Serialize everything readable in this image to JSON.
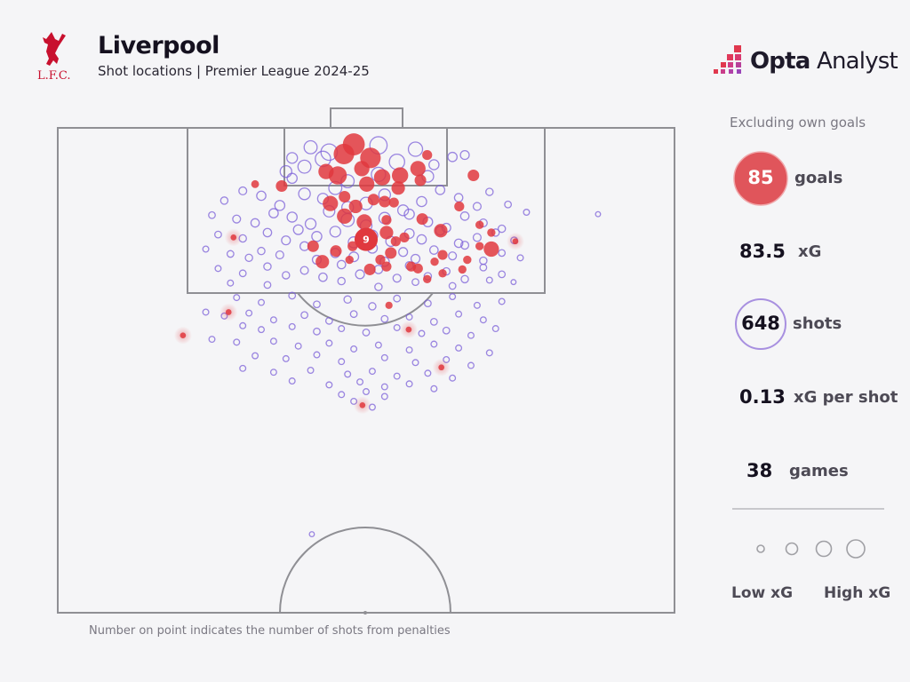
{
  "header": {
    "title": "Liverpool",
    "subtitle": "Shot locations | Premier League 2024-25",
    "club_logo_text": "L.F.C.",
    "brand_bold": "Opta",
    "brand_regular": "Analyst"
  },
  "stats": {
    "note": "Excluding own goals",
    "goals_value": "85",
    "goals_label": "goals",
    "xg_value": "83.5",
    "xg_label": "xG",
    "shots_value": "648",
    "shots_label": "shots",
    "xg_per_shot_value": "0.13",
    "xg_per_shot_label": "xG per shot",
    "games_value": "38",
    "games_label": "games"
  },
  "legend": {
    "low_label": "Low xG",
    "high_label": "High xG"
  },
  "footnote": "Number on point indicates the number of shots from penalties",
  "colors": {
    "goal": "#e0383e",
    "shot": "#7b5fd8",
    "pitch_line": "#8f8f94",
    "background": "#f5f5f7"
  },
  "chart_data": {
    "type": "scatter",
    "coordinate_system": "opta pitch units, x = 0-100 along pitch length (100 = goal line), y = 0-100 across pitch",
    "size_encodes": "xG",
    "penalties": {
      "x": 88.5,
      "y": 50.0,
      "xG": 0.79,
      "label": "9"
    },
    "goals": [
      [
        98.3,
        48.0,
        0.7
      ],
      [
        97.3,
        46.4,
        0.6
      ],
      [
        96.9,
        50.7,
        0.6
      ],
      [
        95.8,
        49.3,
        0.3
      ],
      [
        95.5,
        43.5,
        0.3
      ],
      [
        95.1,
        45.4,
        0.45
      ],
      [
        94.9,
        52.6,
        0.35
      ],
      [
        95.1,
        55.5,
        0.35
      ],
      [
        95.8,
        58.4,
        0.3
      ],
      [
        94.6,
        58.8,
        0.15
      ],
      [
        94.2,
        50.1,
        0.3
      ],
      [
        93.8,
        55.2,
        0.22
      ],
      [
        97.2,
        59.9,
        0.1
      ],
      [
        95.1,
        67.4,
        0.15
      ],
      [
        94.0,
        36.3,
        0.15
      ],
      [
        94.2,
        32.0,
        0.05
      ],
      [
        92.2,
        44.2,
        0.3
      ],
      [
        92.9,
        46.5,
        0.15
      ],
      [
        91.9,
        48.3,
        0.22
      ],
      [
        92.6,
        51.2,
        0.15
      ],
      [
        92.4,
        53.0,
        0.15
      ],
      [
        92.3,
        54.5,
        0.1
      ],
      [
        90.9,
        46.5,
        0.3
      ],
      [
        90.3,
        49.7,
        0.3
      ],
      [
        90.5,
        53.3,
        0.1
      ],
      [
        90.6,
        59.1,
        0.15
      ],
      [
        91.9,
        65.1,
        0.1
      ],
      [
        89.2,
        53.3,
        0.22
      ],
      [
        88.7,
        56.2,
        0.1
      ],
      [
        89.4,
        62.1,
        0.22
      ],
      [
        90.0,
        68.4,
        0.06
      ],
      [
        89.2,
        70.3,
        0.06
      ],
      [
        87.8,
        41.4,
        0.15
      ],
      [
        87.3,
        45.1,
        0.15
      ],
      [
        87.8,
        47.8,
        0.1
      ],
      [
        88.3,
        54.8,
        0.1
      ],
      [
        87.1,
        54.0,
        0.15
      ],
      [
        86.4,
        52.3,
        0.1
      ],
      [
        86.9,
        62.4,
        0.1
      ],
      [
        87.5,
        70.3,
        0.3
      ],
      [
        87.8,
        68.4,
        0.06
      ],
      [
        88.3,
        74.2,
        0.02
      ],
      [
        88.7,
        28.5,
        0.02
      ],
      [
        86.2,
        42.9,
        0.22
      ],
      [
        86.4,
        47.3,
        0.06
      ],
      [
        85.4,
        50.6,
        0.15
      ],
      [
        85.7,
        53.3,
        0.1
      ],
      [
        85.7,
        57.3,
        0.1
      ],
      [
        85.5,
        58.4,
        0.1
      ],
      [
        86.2,
        61.1,
        0.06
      ],
      [
        85.4,
        65.6,
        0.06
      ],
      [
        86.4,
        66.4,
        0.06
      ],
      [
        85.0,
        62.4,
        0.06
      ],
      [
        84.4,
        59.9,
        0.06
      ],
      [
        81.7,
        53.7,
        0.04
      ],
      [
        79.2,
        56.9,
        0.02
      ],
      [
        81.0,
        27.7,
        0.02
      ],
      [
        78.6,
        20.3,
        0.02
      ],
      [
        75.3,
        62.2,
        0.02
      ],
      [
        71.4,
        49.4,
        0.02
      ]
    ],
    "shots": [
      [
        97.5,
        44,
        0.35
      ],
      [
        96.8,
        43,
        0.3
      ],
      [
        97.8,
        58,
        0.25
      ],
      [
        96,
        40,
        0.2
      ],
      [
        95.5,
        37,
        0.15
      ],
      [
        96.5,
        55,
        0.3
      ],
      [
        98.2,
        52,
        0.4
      ],
      [
        96.2,
        61,
        0.1
      ],
      [
        95,
        60,
        0.15
      ],
      [
        94.8,
        38,
        0.1
      ],
      [
        97,
        64,
        0.08
      ],
      [
        96.9,
        38,
        0.12
      ],
      [
        95.2,
        52,
        0.25
      ],
      [
        94.5,
        47,
        0.2
      ],
      [
        98,
        41,
        0.2
      ],
      [
        97.2,
        66,
        0.07
      ],
      [
        93.5,
        30,
        0.05
      ],
      [
        93,
        33,
        0.08
      ],
      [
        92.5,
        27,
        0.04
      ],
      [
        92,
        36,
        0.1
      ],
      [
        93.2,
        40,
        0.15
      ],
      [
        92.7,
        43,
        0.12
      ],
      [
        93.8,
        45,
        0.2
      ],
      [
        91.8,
        47,
        0.15
      ],
      [
        92.2,
        50,
        0.18
      ],
      [
        93.1,
        53,
        0.15
      ],
      [
        91.5,
        56,
        0.12
      ],
      [
        92.4,
        59,
        0.1
      ],
      [
        93.6,
        62,
        0.08
      ],
      [
        92.8,
        65,
        0.06
      ],
      [
        91.9,
        68,
        0.05
      ],
      [
        93.4,
        70,
        0.04
      ],
      [
        92.1,
        73,
        0.03
      ],
      [
        91,
        25,
        0.03
      ],
      [
        90.6,
        29,
        0.05
      ],
      [
        90.2,
        32,
        0.06
      ],
      [
        91.2,
        35,
        0.08
      ],
      [
        90.8,
        38,
        0.1
      ],
      [
        90.1,
        41,
        0.12
      ],
      [
        91.4,
        44,
        0.14
      ],
      [
        90.5,
        47,
        0.2
      ],
      [
        89.9,
        50,
        0.15
      ],
      [
        90.7,
        53,
        0.14
      ],
      [
        91.1,
        57,
        0.1
      ],
      [
        90.3,
        60,
        0.09
      ],
      [
        89.7,
        63,
        0.07
      ],
      [
        90.9,
        66,
        0.06
      ],
      [
        90.2,
        69,
        0.05
      ],
      [
        89.6,
        72,
        0.04
      ],
      [
        91.3,
        76,
        0.02
      ],
      [
        89,
        26,
        0.03
      ],
      [
        88.6,
        30,
        0.04
      ],
      [
        89.2,
        34,
        0.06
      ],
      [
        88.4,
        37,
        0.07
      ],
      [
        89.5,
        39,
        0.09
      ],
      [
        88.8,
        42,
        0.1
      ],
      [
        89.3,
        45,
        0.12
      ],
      [
        88.2,
        48,
        0.13
      ],
      [
        88.9,
        51,
        0.12
      ],
      [
        88.3,
        54,
        0.1
      ],
      [
        89.1,
        57,
        0.09
      ],
      [
        88.5,
        59,
        0.08
      ],
      [
        89.4,
        62,
        0.07
      ],
      [
        88.1,
        65,
        0.06
      ],
      [
        88.7,
        68,
        0.05
      ],
      [
        89.2,
        71,
        0.04
      ],
      [
        88.4,
        74,
        0.03
      ],
      [
        87.5,
        24,
        0.02
      ],
      [
        87,
        28,
        0.03
      ],
      [
        86.6,
        31,
        0.04
      ],
      [
        87.3,
        33,
        0.04
      ],
      [
        86.9,
        36,
        0.05
      ],
      [
        87.8,
        40,
        0.07
      ],
      [
        86.4,
        42,
        0.07
      ],
      [
        87.1,
        45,
        0.08
      ],
      [
        86.7,
        48,
        0.09
      ],
      [
        87.6,
        51,
        0.1
      ],
      [
        86.2,
        53,
        0.08
      ],
      [
        87.2,
        56,
        0.07
      ],
      [
        86.5,
        58,
        0.07
      ],
      [
        87.4,
        61,
        0.06
      ],
      [
        86.8,
        64,
        0.05
      ],
      [
        87.9,
        66,
        0.05
      ],
      [
        86.3,
        69,
        0.04
      ],
      [
        87.1,
        72,
        0.03
      ],
      [
        86.6,
        75,
        0.02
      ],
      [
        85.5,
        26,
        0.02
      ],
      [
        85,
        30,
        0.03
      ],
      [
        85.7,
        34,
        0.04
      ],
      [
        84.8,
        37,
        0.04
      ],
      [
        85.3,
        40,
        0.05
      ],
      [
        84.6,
        43,
        0.06
      ],
      [
        85.9,
        46,
        0.06
      ],
      [
        84.9,
        49,
        0.07
      ],
      [
        85.4,
        52,
        0.06
      ],
      [
        84.5,
        55,
        0.05
      ],
      [
        85.8,
        57,
        0.05
      ],
      [
        84.7,
        60,
        0.04
      ],
      [
        85.2,
        63,
        0.04
      ],
      [
        84.4,
        66,
        0.04
      ],
      [
        85.6,
        69,
        0.03
      ],
      [
        84.9,
        72,
        0.03
      ],
      [
        84,
        28,
        0.02
      ],
      [
        83.8,
        34,
        0.03
      ],
      [
        84.2,
        46,
        0.04
      ],
      [
        83.6,
        52,
        0.04
      ],
      [
        84.1,
        58,
        0.03
      ],
      [
        83.7,
        64,
        0.03
      ],
      [
        84.3,
        70,
        0.02
      ],
      [
        82.5,
        29,
        0.02
      ],
      [
        82,
        33,
        0.02
      ],
      [
        82.7,
        38,
        0.03
      ],
      [
        81.8,
        42,
        0.03
      ],
      [
        82.3,
        47,
        0.04
      ],
      [
        81.6,
        51,
        0.04
      ],
      [
        82.4,
        55,
        0.03
      ],
      [
        81.9,
        60,
        0.03
      ],
      [
        82.6,
        64,
        0.02
      ],
      [
        81.7,
        68,
        0.02
      ],
      [
        82.1,
        72,
        0.02
      ],
      [
        81,
        24,
        0.02
      ],
      [
        80.6,
        27,
        0.02
      ],
      [
        80.9,
        31,
        0.02
      ],
      [
        80.2,
        35,
        0.02
      ],
      [
        80.7,
        40,
        0.03
      ],
      [
        80.1,
        44,
        0.03
      ],
      [
        80.8,
        48,
        0.03
      ],
      [
        80.3,
        53,
        0.03
      ],
      [
        80.5,
        57,
        0.02
      ],
      [
        80,
        61,
        0.03
      ],
      [
        80.8,
        65,
        0.02
      ],
      [
        80.2,
        69,
        0.02
      ],
      [
        79.6,
        30,
        0.02
      ],
      [
        79.2,
        33,
        0.02
      ],
      [
        79.5,
        38,
        0.02
      ],
      [
        79,
        42,
        0.03
      ],
      [
        79.3,
        46,
        0.02
      ],
      [
        78.9,
        50,
        0.03
      ],
      [
        79.4,
        55,
        0.02
      ],
      [
        78.8,
        59,
        0.02
      ],
      [
        79.1,
        63,
        0.03
      ],
      [
        78.6,
        67,
        0.02
      ],
      [
        79.3,
        71,
        0.02
      ],
      [
        78.2,
        25,
        0.02
      ],
      [
        77.9,
        29,
        0.02
      ],
      [
        78,
        35,
        0.02
      ],
      [
        77.5,
        39,
        0.02
      ],
      [
        77.8,
        44,
        0.02
      ],
      [
        77.2,
        48,
        0.02
      ],
      [
        77.6,
        52,
        0.02
      ],
      [
        77.1,
        57,
        0.02
      ],
      [
        77.7,
        61,
        0.02
      ],
      [
        77.3,
        65,
        0.02
      ],
      [
        76.8,
        70,
        0.02
      ],
      [
        76.5,
        32,
        0.02
      ],
      [
        76.2,
        37,
        0.02
      ],
      [
        76.6,
        42,
        0.02
      ],
      [
        75.9,
        46,
        0.02
      ],
      [
        76.3,
        53,
        0.02
      ],
      [
        75.8,
        58,
        0.02
      ],
      [
        76.1,
        63,
        0.02
      ],
      [
        75.5,
        67,
        0.02
      ],
      [
        75.2,
        30,
        0.02
      ],
      [
        74.8,
        35,
        0.02
      ],
      [
        75,
        41,
        0.02
      ],
      [
        74.6,
        47,
        0.02
      ],
      [
        74.9,
        51,
        0.02
      ],
      [
        74.4,
        55,
        0.02
      ],
      [
        74.7,
        60,
        0.02
      ],
      [
        74.2,
        64,
        0.02
      ],
      [
        73.9,
        38,
        0.02
      ],
      [
        73.5,
        44,
        0.02
      ],
      [
        73.8,
        49,
        0.02
      ],
      [
        73.3,
        53,
        0.02
      ],
      [
        73.6,
        57,
        0.02
      ],
      [
        73.1,
        61,
        0.02
      ],
      [
        72.8,
        50,
        0.02
      ],
      [
        72.5,
        46,
        0.02
      ],
      [
        72.3,
        53,
        0.02
      ],
      [
        71.8,
        48,
        0.02
      ],
      [
        71.2,
        51,
        0.02
      ],
      [
        91.1,
        87.6,
        0.01
      ],
      [
        84.1,
        73.9,
        0.01
      ],
      [
        58.1,
        41.2,
        0.01
      ]
    ]
  }
}
